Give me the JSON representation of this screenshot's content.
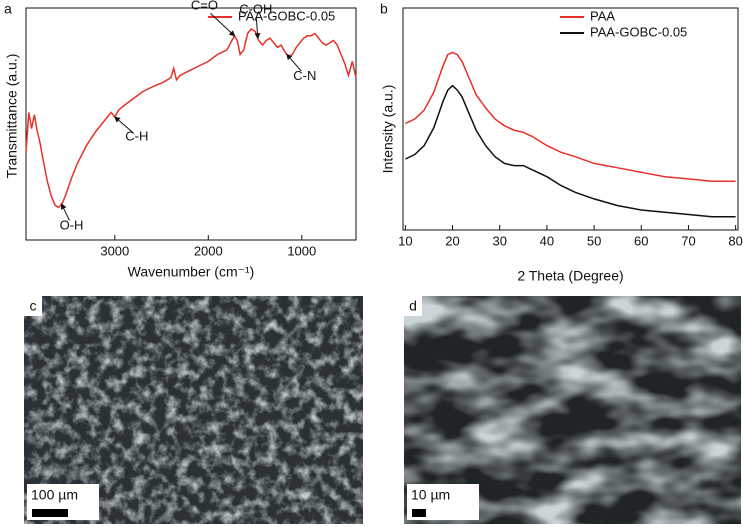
{
  "chart_data": [
    {
      "type": "line",
      "panel_label": "a",
      "x_label": "Wavenumber (cm⁻¹)",
      "y_label": "Transmittance (a.u.)",
      "xlim": [
        3950,
        420
      ],
      "xticks": [
        3000,
        2000,
        1000
      ],
      "ylim": [
        0,
        100
      ],
      "legend": "top-right",
      "series": [
        {
          "name": "PAA-GOBC-0.05",
          "color": "#e8302a",
          "x": [
            3950,
            3920,
            3890,
            3860,
            3830,
            3800,
            3760,
            3720,
            3680,
            3640,
            3600,
            3560,
            3520,
            3460,
            3400,
            3300,
            3200,
            3100,
            3040,
            3000,
            2960,
            2900,
            2800,
            2700,
            2600,
            2480,
            2400,
            2370,
            2340,
            2300,
            2200,
            2100,
            2000,
            1900,
            1800,
            1760,
            1720,
            1690,
            1660,
            1620,
            1580,
            1540,
            1500,
            1460,
            1420,
            1380,
            1340,
            1300,
            1260,
            1220,
            1180,
            1140,
            1100,
            1060,
            1020,
            980,
            940,
            900,
            860,
            820,
            780,
            740,
            700,
            660,
            620,
            580,
            540,
            500,
            460,
            420
          ],
          "values": [
            38,
            55,
            48,
            54,
            47,
            42,
            33,
            25,
            19,
            15,
            14,
            16,
            20,
            27,
            33,
            41,
            47,
            52,
            55,
            53,
            56,
            58,
            61,
            64,
            66,
            68,
            70,
            74,
            69,
            71,
            73,
            75,
            77,
            80,
            82,
            85,
            88,
            86,
            80,
            82,
            89,
            91,
            90,
            86,
            84,
            86,
            87,
            85,
            83,
            84,
            81,
            79,
            80,
            83,
            85,
            87,
            88,
            88,
            89,
            87,
            85,
            84,
            85,
            86,
            84,
            80,
            76,
            71,
            77,
            70
          ]
        }
      ],
      "annotations": [
        {
          "text": "O-H",
          "x": 3570
        },
        {
          "text": "C-H",
          "x": 3000
        },
        {
          "text": "C=O",
          "x": 1720
        },
        {
          "text": "C-OH",
          "x": 1470
        },
        {
          "text": "C-N",
          "x": 1160
        }
      ]
    },
    {
      "type": "line",
      "panel_label": "b",
      "x_label": "2 Theta (Degree)",
      "y_label": "Intensity (a.u.)",
      "xlim": [
        9.5,
        80.5
      ],
      "xticks": [
        10,
        20,
        30,
        40,
        50,
        60,
        70,
        80
      ],
      "ylim": [
        0,
        100
      ],
      "legend": "top-right",
      "series": [
        {
          "name": "PAA",
          "color": "#e8302a",
          "x": [
            10,
            12,
            14,
            16,
            17,
            18,
            19,
            20,
            21,
            22,
            23,
            24,
            25,
            27,
            29,
            31,
            33,
            35,
            37,
            40,
            43,
            46,
            50,
            55,
            60,
            65,
            70,
            75,
            80
          ],
          "values": [
            48,
            50,
            54,
            62,
            68,
            74,
            79,
            80,
            79,
            76,
            71,
            66,
            61,
            55,
            50,
            47,
            45,
            44,
            42,
            38,
            35,
            33,
            30,
            28,
            26,
            24,
            23,
            22,
            22
          ]
        },
        {
          "name": "PAA-GOBC-0.05",
          "color": "#111111",
          "x": [
            10,
            12,
            14,
            16,
            17,
            18,
            19,
            20,
            21,
            22,
            23,
            24,
            25,
            27,
            29,
            31,
            33,
            35,
            37,
            40,
            43,
            46,
            50,
            55,
            60,
            65,
            70,
            75,
            80
          ],
          "values": [
            32,
            34,
            38,
            46,
            52,
            58,
            63,
            65,
            63,
            60,
            55,
            50,
            45,
            38,
            33,
            30,
            29,
            29,
            27,
            24,
            20,
            17,
            14,
            11,
            9,
            8,
            7,
            6,
            6
          ]
        }
      ]
    }
  ],
  "images": [
    {
      "label": "c",
      "scale_bar": "100 µm"
    },
    {
      "label": "d",
      "scale_bar": "10 µm"
    }
  ]
}
